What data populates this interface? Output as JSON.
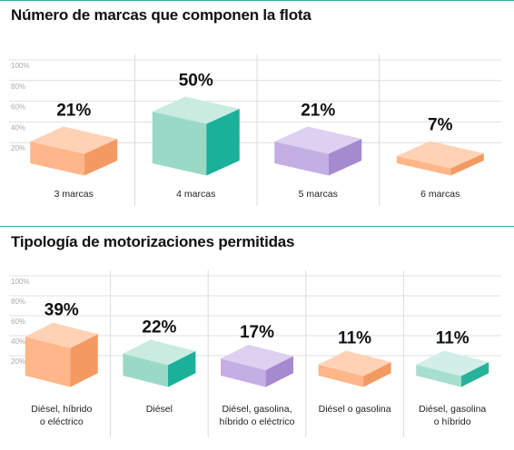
{
  "colors": {
    "rule": "#2fae9e",
    "grid": "#d8d8d8",
    "divider": "#dcdcdc",
    "orange": [
      "#ffd2b5",
      "#ffb688",
      "#f39a63"
    ],
    "teal": [
      "#c9ebe0",
      "#9ad9c6",
      "#1bb09a"
    ],
    "purple": [
      "#ddd0f0",
      "#c4afe4",
      "#a58ad0"
    ],
    "gray_teal": [
      "#d2eee6",
      "#a7dfcf",
      "#26b29b"
    ]
  },
  "chart_data": [
    {
      "type": "bar",
      "title": "Número de marcas que componen la flota",
      "y_ticks": [
        "100%",
        "80%",
        "60%",
        "40%",
        "20%"
      ],
      "ylim": [
        0,
        100
      ],
      "categories": [
        "3 marcas",
        "4 marcas",
        "5 marcas",
        "6 marcas"
      ],
      "values": [
        21,
        50,
        21,
        7
      ],
      "value_labels": [
        "21%",
        "50%",
        "21%",
        "7%"
      ],
      "bar_colors": [
        "orange",
        "teal",
        "purple",
        "orange"
      ],
      "grid": true
    },
    {
      "type": "bar",
      "title": "Tipología de motorizaciones permitidas",
      "y_ticks": [
        "100%",
        "80%",
        "60%",
        "40%",
        "20%"
      ],
      "ylim": [
        0,
        100
      ],
      "categories": [
        [
          "Diésel, híbrido",
          "o eléctrico"
        ],
        [
          "Diésel"
        ],
        [
          "Diésel, gasolina,",
          "híbrido o eléctrico"
        ],
        [
          "Diésel o gasolina"
        ],
        [
          "Diésel, gasolina",
          "o híbrido"
        ]
      ],
      "values": [
        39,
        22,
        17,
        11,
        11
      ],
      "value_labels": [
        "39%",
        "22%",
        "17%",
        "11%",
        "11%"
      ],
      "bar_colors": [
        "orange",
        "teal",
        "purple",
        "orange",
        "gray_teal"
      ],
      "grid": true
    }
  ]
}
